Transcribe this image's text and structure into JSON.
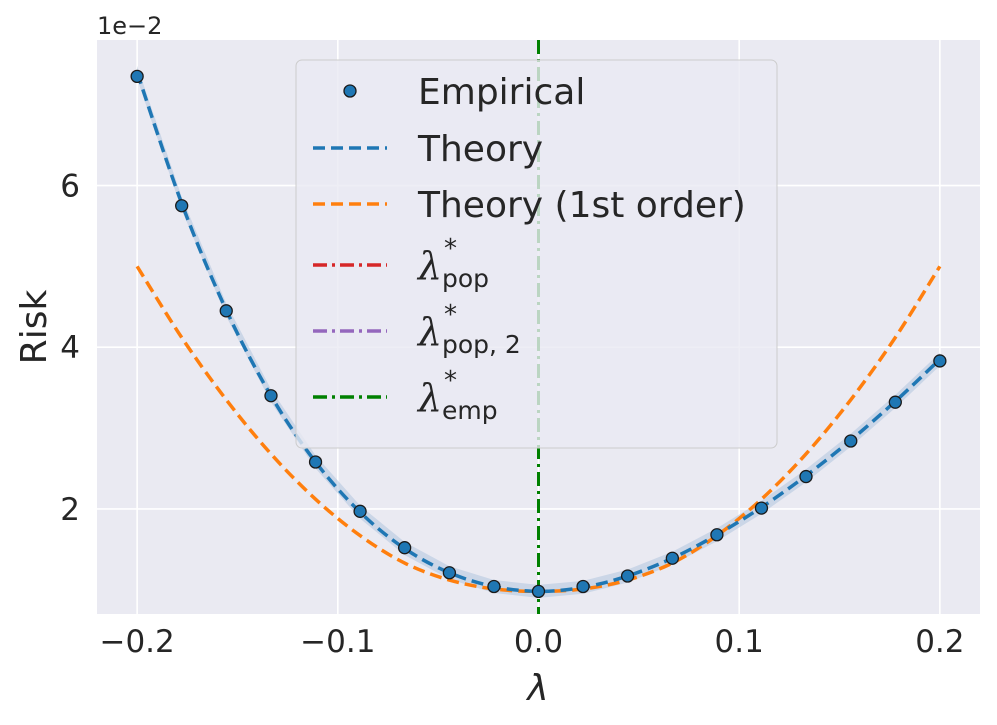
{
  "chart_data": {
    "type": "line",
    "xlabel": "λ",
    "ylabel": "Risk",
    "y_offset_label": "1e−2",
    "xlim": [
      -0.22,
      0.22
    ],
    "ylim": [
      0.7,
      7.8
    ],
    "y_scale_factor": 0.01,
    "xticks": [
      -0.2,
      -0.1,
      0.0,
      0.1,
      0.2
    ],
    "xtick_labels": [
      "−0.2",
      "−0.1",
      "0.0",
      "0.1",
      "0.2"
    ],
    "yticks": [
      2,
      4,
      6
    ],
    "ytick_labels": [
      "2",
      "4",
      "6"
    ],
    "grid": true,
    "legend_position": "top-center",
    "background": "#eaeaf2",
    "series": [
      {
        "name": "Empirical",
        "kind": "scatter",
        "color": "#1f77b4",
        "x": [
          -0.2,
          -0.1778,
          -0.1556,
          -0.1333,
          -0.1111,
          -0.0889,
          -0.0667,
          -0.0444,
          -0.0222,
          0.0,
          0.0222,
          0.0444,
          0.0667,
          0.0889,
          0.1111,
          0.1333,
          0.1556,
          0.1778,
          0.2
        ],
        "y": [
          7.35,
          5.75,
          4.45,
          3.4,
          2.58,
          1.97,
          1.52,
          1.21,
          1.04,
          0.98,
          1.04,
          1.17,
          1.39,
          1.68,
          2.01,
          2.4,
          2.84,
          3.32,
          3.83
        ]
      },
      {
        "name": "Theory",
        "kind": "line",
        "dash": "dashed",
        "color": "#1f77b4",
        "x": [
          -0.2,
          -0.1778,
          -0.1556,
          -0.1333,
          -0.1111,
          -0.0889,
          -0.0667,
          -0.0444,
          -0.0222,
          0.0,
          0.0222,
          0.0444,
          0.0667,
          0.0889,
          0.1111,
          0.1333,
          0.1556,
          0.1778,
          0.2
        ],
        "y": [
          7.4,
          5.78,
          4.46,
          3.4,
          2.58,
          1.96,
          1.51,
          1.21,
          1.04,
          0.98,
          1.03,
          1.17,
          1.39,
          1.68,
          2.02,
          2.41,
          2.85,
          3.33,
          3.85
        ]
      },
      {
        "name": "Theory (1st order)",
        "kind": "line",
        "dash": "dashed",
        "color": "#ff7f0e",
        "x": [
          -0.2,
          -0.1778,
          -0.1556,
          -0.1333,
          -0.1111,
          -0.0889,
          -0.0667,
          -0.0444,
          -0.0222,
          0.0,
          0.0222,
          0.0444,
          0.0667,
          0.0889,
          0.1111,
          0.1333,
          0.1556,
          0.1778,
          0.2
        ],
        "y": [
          5.0,
          4.12,
          3.35,
          2.68,
          2.12,
          1.67,
          1.33,
          1.12,
          1.01,
          0.98,
          1.01,
          1.12,
          1.33,
          1.67,
          2.12,
          2.68,
          3.35,
          4.12,
          5.0
        ]
      },
      {
        "name": "λ*pop",
        "kind": "vline",
        "dash": "dashdot",
        "color": "#d62728",
        "x": 0.0
      },
      {
        "name": "λ*pop,2",
        "kind": "vline",
        "dash": "dashdot",
        "color": "#9467bd",
        "x": 0.0
      },
      {
        "name": "λ*emp",
        "kind": "vline",
        "dash": "dashdot",
        "color": "#008000",
        "x": 0.0
      }
    ],
    "legend": [
      {
        "kind": "marker",
        "color": "#1f77b4",
        "label": "Empirical"
      },
      {
        "kind": "dashed",
        "color": "#1f77b4",
        "label": "Theory"
      },
      {
        "kind": "dashed",
        "color": "#ff7f0e",
        "label": "Theory (1st order)"
      },
      {
        "kind": "dashdot",
        "color": "#d62728",
        "symbol": "λ",
        "sup": "*",
        "sub": "pop"
      },
      {
        "kind": "dashdot",
        "color": "#9467bd",
        "symbol": "λ",
        "sup": "*",
        "sub": "pop, 2"
      },
      {
        "kind": "dashdot",
        "color": "#008000",
        "symbol": "λ",
        "sup": "*",
        "sub": "emp"
      }
    ]
  }
}
